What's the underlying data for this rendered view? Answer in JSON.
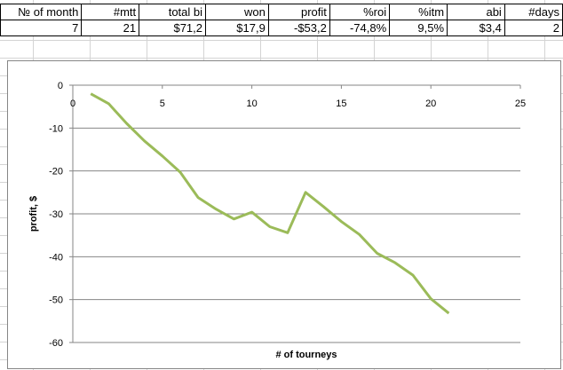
{
  "sheet": {
    "headers": [
      "№ of month",
      "#mtt",
      "total bi",
      "won",
      "profit",
      "%roi",
      "%itm",
      "abi",
      "#days"
    ],
    "values": [
      "7",
      "21",
      "$71,2",
      "$17,9",
      "-$53,2",
      "-74,8%",
      "9,5%",
      "$3,4",
      "2"
    ]
  },
  "chart_data": {
    "type": "line",
    "title": "",
    "xlabel": "# of tourneys",
    "ylabel": "profit, $",
    "xlim": [
      0,
      25
    ],
    "ylim": [
      -60,
      0
    ],
    "x_ticks": [
      "0",
      "5",
      "10",
      "15",
      "20",
      "25"
    ],
    "y_ticks": [
      "0",
      "-10",
      "-20",
      "-30",
      "-40",
      "-50",
      "-60"
    ],
    "grid": true,
    "legend": "none",
    "line_color": "#9bbb59",
    "series": [
      {
        "x": [
          1,
          2,
          3,
          4,
          5,
          6,
          7,
          8,
          9,
          10,
          11,
          12,
          13,
          14,
          15,
          16,
          17,
          18,
          19,
          20,
          21
        ],
        "values": [
          -2,
          -4.3,
          -8.9,
          -13,
          -16.5,
          -20.3,
          -26.2,
          -28.9,
          -31.2,
          -29.6,
          -33,
          -34.4,
          -25,
          -28.3,
          -31.8,
          -34.8,
          -39.2,
          -41.4,
          -44.3,
          -49.8,
          -53.2
        ]
      }
    ]
  }
}
